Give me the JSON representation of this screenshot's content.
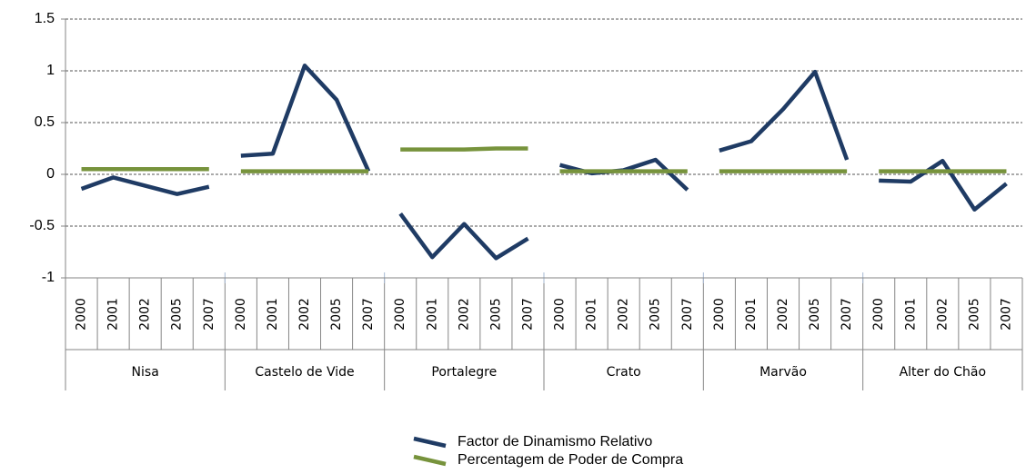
{
  "chart_data": {
    "type": "line",
    "categories": [
      {
        "name": "Nisa",
        "years": [
          "2000",
          "2001",
          "2002",
          "2005",
          "2007"
        ]
      },
      {
        "name": "Castelo de Vide",
        "years": [
          "2000",
          "2001",
          "2002",
          "2005",
          "2007"
        ]
      },
      {
        "name": "Portalegre",
        "years": [
          "2000",
          "2001",
          "2002",
          "2005",
          "2007"
        ]
      },
      {
        "name": "Crato",
        "years": [
          "2000",
          "2001",
          "2002",
          "2005",
          "2007"
        ]
      },
      {
        "name": "Marvão",
        "years": [
          "2000",
          "2001",
          "2002",
          "2005",
          "2007"
        ]
      },
      {
        "name": "Alter do Chão",
        "years": [
          "2000",
          "2001",
          "2002",
          "2005",
          "2007"
        ]
      }
    ],
    "series": [
      {
        "name": "Factor de Dinamismo Relativo",
        "color": "#1f3b64",
        "values": [
          [
            -0.14,
            -0.03,
            -0.11,
            -0.19,
            -0.12
          ],
          [
            0.18,
            0.2,
            1.05,
            0.72,
            0.03
          ],
          [
            -0.38,
            -0.8,
            -0.48,
            -0.81,
            -0.62
          ],
          [
            0.09,
            0.01,
            0.04,
            0.14,
            -0.15
          ],
          [
            0.23,
            0.32,
            0.63,
            0.99,
            0.14
          ],
          [
            -0.06,
            -0.07,
            0.13,
            -0.34,
            -0.09
          ]
        ]
      },
      {
        "name": "Percentagem de Poder de Compra",
        "color": "#77933c",
        "values": [
          [
            0.05,
            0.05,
            0.05,
            0.05,
            0.05
          ],
          [
            0.03,
            0.03,
            0.03,
            0.03,
            0.03
          ],
          [
            0.24,
            0.24,
            0.24,
            0.25,
            0.25
          ],
          [
            0.03,
            0.03,
            0.03,
            0.03,
            0.03
          ],
          [
            0.03,
            0.03,
            0.03,
            0.03,
            0.03
          ],
          [
            0.03,
            0.03,
            0.03,
            0.03,
            0.03
          ]
        ]
      }
    ],
    "ylim": [
      -1,
      1.5
    ],
    "yticks": [
      -1,
      -0.5,
      0,
      0.5,
      1,
      1.5
    ],
    "grid": true,
    "legend": "bottom"
  }
}
